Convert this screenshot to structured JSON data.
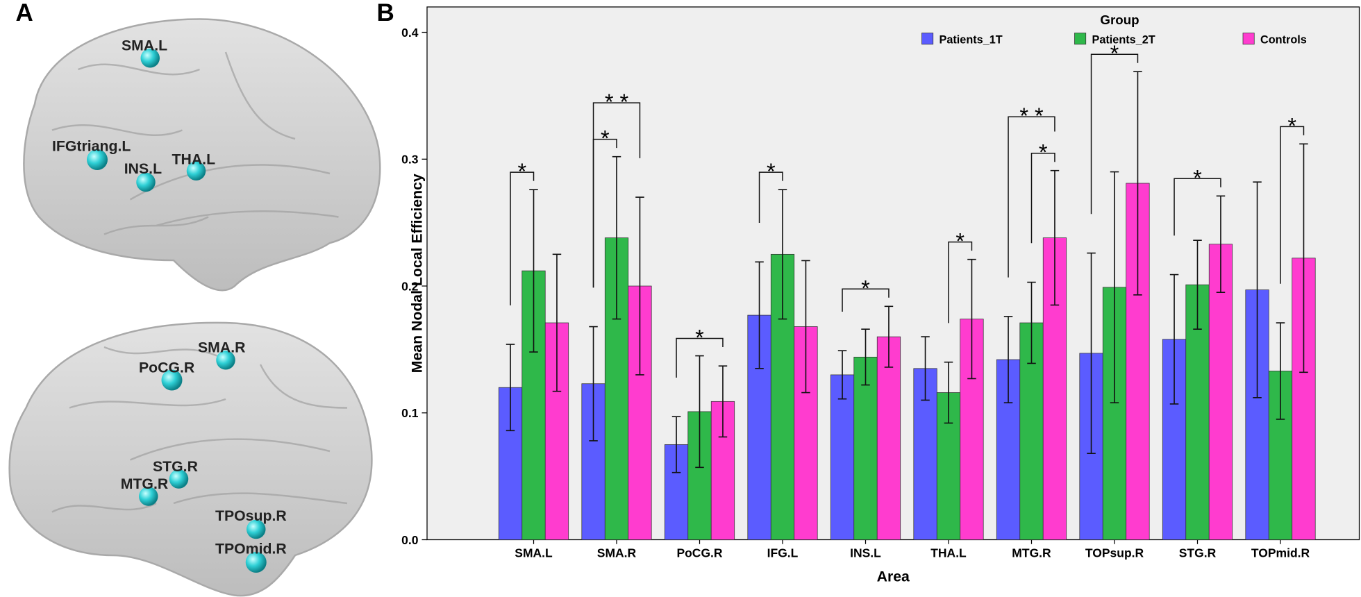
{
  "panels": {
    "a": {
      "label": "A",
      "regions": [
        "SMA.L",
        "IFGtriang.L",
        "INS.L",
        "THA.L",
        "SMA.R",
        "PoCG.R",
        "STG.R",
        "MTG.R",
        "TPOsup.R",
        "TPOmid.R"
      ]
    }
  },
  "chart_data": {
    "type": "bar",
    "panel_label": "B",
    "x_label": "Area",
    "y_label": "Mean Nodal Local Efficiency",
    "categories": [
      "SMA.L",
      "SMA.R",
      "PoCG.R",
      "IFG.L",
      "INS.L",
      "THA.L",
      "MTG.R",
      "TOPsup.R",
      "STG.R",
      "TOPmid.R"
    ],
    "legend_title": "Group",
    "series": [
      {
        "name": "Patients_1T",
        "color": "#5b5cff",
        "values": [
          0.12,
          0.123,
          0.075,
          0.177,
          0.13,
          0.135,
          0.142,
          0.147,
          0.158,
          0.197
        ],
        "errors": [
          0.034,
          0.045,
          0.022,
          0.042,
          0.019,
          0.025,
          0.034,
          0.079,
          0.051,
          0.085
        ]
      },
      {
        "name": "Patients_2T",
        "color": "#2fb84a",
        "values": [
          0.212,
          0.238,
          0.101,
          0.225,
          0.144,
          0.116,
          0.171,
          0.199,
          0.201,
          0.133
        ],
        "errors": [
          0.064,
          0.064,
          0.044,
          0.051,
          0.022,
          0.024,
          0.032,
          0.091,
          0.035,
          0.038
        ]
      },
      {
        "name": "Controls",
        "color": "#ff3ccf",
        "values": [
          0.171,
          0.2,
          0.109,
          0.168,
          0.16,
          0.174,
          0.238,
          0.281,
          0.233,
          0.222
        ],
        "errors": [
          0.054,
          0.07,
          0.028,
          0.052,
          0.024,
          0.047,
          0.053,
          0.088,
          0.038,
          0.09
        ]
      }
    ],
    "significance": [
      {
        "category": 0,
        "from": 0,
        "to": 1,
        "label": "*"
      },
      {
        "category": 1,
        "from": 0,
        "to": 1,
        "label": "*"
      },
      {
        "category": 1,
        "from": 0,
        "to": 2,
        "label": "* *"
      },
      {
        "category": 2,
        "from": 0,
        "to": 2,
        "label": "*"
      },
      {
        "category": 3,
        "from": 0,
        "to": 1,
        "label": "*"
      },
      {
        "category": 4,
        "from": 0,
        "to": 2,
        "label": "*"
      },
      {
        "category": 5,
        "from": 1,
        "to": 2,
        "label": "*"
      },
      {
        "category": 6,
        "from": 1,
        "to": 2,
        "label": "*"
      },
      {
        "category": 6,
        "from": 0,
        "to": 2,
        "label": "* *"
      },
      {
        "category": 7,
        "from": 0,
        "to": 2,
        "label": "*"
      },
      {
        "category": 8,
        "from": 0,
        "to": 2,
        "label": "*"
      },
      {
        "category": 9,
        "from": 1,
        "to": 2,
        "label": "*"
      }
    ],
    "ylim": [
      0,
      0.42
    ],
    "yticks": [
      {
        "value": 0,
        "label": "0.0"
      },
      0.1,
      0.2,
      0.3,
      0.4
    ],
    "background": "#efefef"
  }
}
